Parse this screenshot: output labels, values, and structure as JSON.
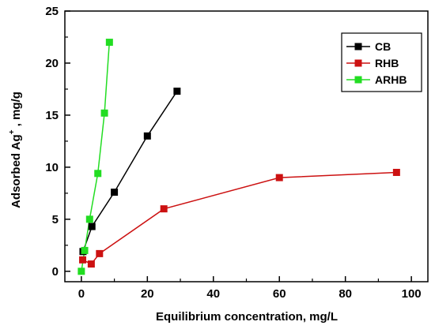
{
  "chart_data": {
    "type": "line",
    "xlabel": "Equilibrium concentration, mg/L",
    "ylabel_prefix": "Adsorbed Ag",
    "ylabel_sup": "+",
    "ylabel_suffix": " , mg/g",
    "xlim": [
      -5,
      105
    ],
    "ylim": [
      -1,
      25
    ],
    "x_ticks": [
      0,
      20,
      40,
      60,
      80,
      100
    ],
    "y_ticks": [
      0,
      5,
      10,
      15,
      20,
      25
    ],
    "grid": false,
    "legend_position": "top-right",
    "series": [
      {
        "name": "CB",
        "color": "#000000",
        "x": [
          0.5,
          3.2,
          10.0,
          20.0,
          29.0
        ],
        "y": [
          1.9,
          4.3,
          7.6,
          13.0,
          17.3
        ]
      },
      {
        "name": "RHB",
        "color": "#cc1111",
        "x": [
          0.4,
          3.0,
          5.5,
          25.0,
          60.0,
          95.5
        ],
        "y": [
          1.1,
          0.7,
          1.7,
          6.0,
          9.0,
          9.5
        ]
      },
      {
        "name": "ARHB",
        "color": "#22dd22",
        "x": [
          0.0,
          1.0,
          2.5,
          5.0,
          7.0,
          8.5
        ],
        "y": [
          0.0,
          2.0,
          5.0,
          9.4,
          15.2,
          22.0
        ]
      }
    ]
  }
}
